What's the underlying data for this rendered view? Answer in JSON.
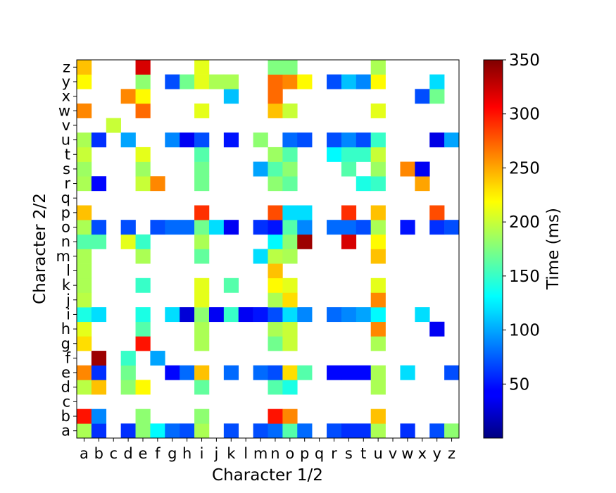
{
  "chart_data": {
    "type": "heatmap",
    "title": "",
    "xlabel": "Character 1/2",
    "ylabel": "Character 2/2",
    "x_categories": [
      "a",
      "b",
      "c",
      "d",
      "e",
      "f",
      "g",
      "h",
      "i",
      "j",
      "k",
      "l",
      "m",
      "n",
      "o",
      "p",
      "q",
      "r",
      "s",
      "t",
      "u",
      "v",
      "w",
      "x",
      "y",
      "z"
    ],
    "y_categories": [
      "a",
      "b",
      "c",
      "d",
      "e",
      "f",
      "g",
      "h",
      "i",
      "j",
      "k",
      "l",
      "m",
      "n",
      "o",
      "p",
      "q",
      "r",
      "s",
      "t",
      "u",
      "v",
      "w",
      "x",
      "y",
      "z"
    ],
    "colorbar": {
      "label": "Time (ms)",
      "range": [
        0,
        350
      ],
      "ticks": [
        50,
        100,
        150,
        200,
        250,
        300,
        350
      ],
      "colormap": "jet"
    },
    "cells": [
      {
        "x": "a",
        "y": "a",
        "v": 190
      },
      {
        "x": "b",
        "y": "a",
        "v": 60
      },
      {
        "x": "d",
        "y": "a",
        "v": 60
      },
      {
        "x": "e",
        "y": "a",
        "v": 180
      },
      {
        "x": "f",
        "y": "a",
        "v": 130
      },
      {
        "x": "g",
        "y": "a",
        "v": 80
      },
      {
        "x": "h",
        "y": "a",
        "v": 70
      },
      {
        "x": "i",
        "y": "a",
        "v": 190
      },
      {
        "x": "k",
        "y": "a",
        "v": 70
      },
      {
        "x": "m",
        "y": "a",
        "v": 70
      },
      {
        "x": "n",
        "y": "a",
        "v": 80
      },
      {
        "x": "o",
        "y": "a",
        "v": 160
      },
      {
        "x": "p",
        "y": "a",
        "v": 80
      },
      {
        "x": "r",
        "y": "a",
        "v": 70
      },
      {
        "x": "s",
        "y": "a",
        "v": 60
      },
      {
        "x": "t",
        "y": "a",
        "v": 60
      },
      {
        "x": "u",
        "y": "a",
        "v": 190
      },
      {
        "x": "w",
        "y": "a",
        "v": 60
      },
      {
        "x": "y",
        "y": "a",
        "v": 70
      },
      {
        "x": "z",
        "y": "a",
        "v": 180
      },
      {
        "x": "a",
        "y": "b",
        "v": 300
      },
      {
        "x": "b",
        "y": "b",
        "v": 90
      },
      {
        "x": "e",
        "y": "b",
        "v": 180
      },
      {
        "x": "i",
        "y": "b",
        "v": 180
      },
      {
        "x": "n",
        "y": "b",
        "v": 300
      },
      {
        "x": "o",
        "y": "b",
        "v": 260
      },
      {
        "x": "u",
        "y": "b",
        "v": 240
      },
      {
        "x": "a",
        "y": "d",
        "v": 195
      },
      {
        "x": "b",
        "y": "d",
        "v": 240
      },
      {
        "x": "d",
        "y": "d",
        "v": 180
      },
      {
        "x": "e",
        "y": "d",
        "v": 220
      },
      {
        "x": "i",
        "y": "d",
        "v": 165
      },
      {
        "x": "n",
        "y": "d",
        "v": 160
      },
      {
        "x": "o",
        "y": "d",
        "v": 140
      },
      {
        "x": "u",
        "y": "d",
        "v": 190
      },
      {
        "x": "a",
        "y": "e",
        "v": 260
      },
      {
        "x": "b",
        "y": "e",
        "v": 60
      },
      {
        "x": "d",
        "y": "e",
        "v": 170
      },
      {
        "x": "g",
        "y": "e",
        "v": 45
      },
      {
        "x": "h",
        "y": "e",
        "v": 80
      },
      {
        "x": "i",
        "y": "e",
        "v": 240
      },
      {
        "x": "k",
        "y": "e",
        "v": 80
      },
      {
        "x": "m",
        "y": "e",
        "v": 80
      },
      {
        "x": "n",
        "y": "e",
        "v": 70
      },
      {
        "x": "o",
        "y": "e",
        "v": 230
      },
      {
        "x": "p",
        "y": "e",
        "v": 160
      },
      {
        "x": "r",
        "y": "e",
        "v": 45
      },
      {
        "x": "s",
        "y": "e",
        "v": 45
      },
      {
        "x": "t",
        "y": "e",
        "v": 45
      },
      {
        "x": "u",
        "y": "e",
        "v": 190
      },
      {
        "x": "w",
        "y": "e",
        "v": 120
      },
      {
        "x": "z",
        "y": "e",
        "v": 70
      },
      {
        "x": "b",
        "y": "f",
        "v": 340
      },
      {
        "x": "d",
        "y": "f",
        "v": 150
      },
      {
        "x": "f",
        "y": "f",
        "v": 100
      },
      {
        "x": "a",
        "y": "g",
        "v": 230
      },
      {
        "x": "e",
        "y": "g",
        "v": 300
      },
      {
        "x": "i",
        "y": "g",
        "v": 190
      },
      {
        "x": "n",
        "y": "g",
        "v": 170
      },
      {
        "x": "o",
        "y": "g",
        "v": 200
      },
      {
        "x": "u",
        "y": "g",
        "v": 190
      },
      {
        "x": "a",
        "y": "h",
        "v": 210
      },
      {
        "x": "e",
        "y": "h",
        "v": 160
      },
      {
        "x": "i",
        "y": "h",
        "v": 190
      },
      {
        "x": "n",
        "y": "h",
        "v": 190
      },
      {
        "x": "o",
        "y": "h",
        "v": 200
      },
      {
        "x": "u",
        "y": "h",
        "v": 260
      },
      {
        "x": "y",
        "y": "h",
        "v": 40
      },
      {
        "x": "a",
        "y": "i",
        "v": 140
      },
      {
        "x": "b",
        "y": "i",
        "v": 120
      },
      {
        "x": "e",
        "y": "i",
        "v": 140
      },
      {
        "x": "g",
        "y": "i",
        "v": 120
      },
      {
        "x": "h",
        "y": "i",
        "v": 30
      },
      {
        "x": "i",
        "y": "i",
        "v": 180
      },
      {
        "x": "j",
        "y": "i",
        "v": 40
      },
      {
        "x": "k",
        "y": "i",
        "v": 150
      },
      {
        "x": "l",
        "y": "i",
        "v": 40
      },
      {
        "x": "m",
        "y": "i",
        "v": 50
      },
      {
        "x": "n",
        "y": "i",
        "v": 70
      },
      {
        "x": "o",
        "y": "i",
        "v": 120
      },
      {
        "x": "p",
        "y": "i",
        "v": 90
      },
      {
        "x": "r",
        "y": "i",
        "v": 80
      },
      {
        "x": "s",
        "y": "i",
        "v": 90
      },
      {
        "x": "t",
        "y": "i",
        "v": 100
      },
      {
        "x": "u",
        "y": "i",
        "v": 130
      },
      {
        "x": "x",
        "y": "i",
        "v": 120
      },
      {
        "x": "a",
        "y": "j",
        "v": 195
      },
      {
        "x": "i",
        "y": "j",
        "v": 210
      },
      {
        "x": "n",
        "y": "j",
        "v": 190
      },
      {
        "x": "o",
        "y": "j",
        "v": 230
      },
      {
        "x": "u",
        "y": "j",
        "v": 260
      },
      {
        "x": "a",
        "y": "k",
        "v": 190
      },
      {
        "x": "e",
        "y": "k",
        "v": 150
      },
      {
        "x": "i",
        "y": "k",
        "v": 210
      },
      {
        "x": "k",
        "y": "k",
        "v": 160
      },
      {
        "x": "n",
        "y": "k",
        "v": 220
      },
      {
        "x": "o",
        "y": "k",
        "v": 210
      },
      {
        "x": "u",
        "y": "k",
        "v": 210
      },
      {
        "x": "a",
        "y": "l",
        "v": 190
      },
      {
        "x": "n",
        "y": "l",
        "v": 240
      },
      {
        "x": "a",
        "y": "m",
        "v": 190
      },
      {
        "x": "e",
        "y": "m",
        "v": 190
      },
      {
        "x": "i",
        "y": "m",
        "v": 165
      },
      {
        "x": "m",
        "y": "m",
        "v": 120
      },
      {
        "x": "n",
        "y": "m",
        "v": 195
      },
      {
        "x": "o",
        "y": "m",
        "v": 190
      },
      {
        "x": "u",
        "y": "m",
        "v": 240
      },
      {
        "x": "a",
        "y": "n",
        "v": 160
      },
      {
        "x": "b",
        "y": "n",
        "v": 160
      },
      {
        "x": "d",
        "y": "n",
        "v": 210
      },
      {
        "x": "e",
        "y": "n",
        "v": 150
      },
      {
        "x": "i",
        "y": "n",
        "v": 190
      },
      {
        "x": "n",
        "y": "n",
        "v": 130
      },
      {
        "x": "o",
        "y": "n",
        "v": 180
      },
      {
        "x": "p",
        "y": "n",
        "v": 340
      },
      {
        "x": "s",
        "y": "n",
        "v": 320
      },
      {
        "x": "u",
        "y": "n",
        "v": 220
      },
      {
        "x": "a",
        "y": "o",
        "v": 190
      },
      {
        "x": "b",
        "y": "o",
        "v": 70
      },
      {
        "x": "d",
        "y": "o",
        "v": 70
      },
      {
        "x": "f",
        "y": "o",
        "v": 70
      },
      {
        "x": "g",
        "y": "o",
        "v": 80
      },
      {
        "x": "h",
        "y": "o",
        "v": 80
      },
      {
        "x": "i",
        "y": "o",
        "v": 170
      },
      {
        "x": "j",
        "y": "o",
        "v": 120
      },
      {
        "x": "k",
        "y": "o",
        "v": 40
      },
      {
        "x": "m",
        "y": "o",
        "v": 60
      },
      {
        "x": "n",
        "y": "o",
        "v": 50
      },
      {
        "x": "o",
        "y": "o",
        "v": 160
      },
      {
        "x": "p",
        "y": "o",
        "v": 90
      },
      {
        "x": "r",
        "y": "o",
        "v": 80
      },
      {
        "x": "s",
        "y": "o",
        "v": 80
      },
      {
        "x": "t",
        "y": "o",
        "v": 70
      },
      {
        "x": "u",
        "y": "o",
        "v": 190
      },
      {
        "x": "w",
        "y": "o",
        "v": 50
      },
      {
        "x": "y",
        "y": "o",
        "v": 60
      },
      {
        "x": "z",
        "y": "o",
        "v": 70
      },
      {
        "x": "a",
        "y": "p",
        "v": 240
      },
      {
        "x": "i",
        "y": "p",
        "v": 290
      },
      {
        "x": "n",
        "y": "p",
        "v": 280
      },
      {
        "x": "o",
        "y": "p",
        "v": 120
      },
      {
        "x": "p",
        "y": "p",
        "v": 120
      },
      {
        "x": "s",
        "y": "p",
        "v": 290
      },
      {
        "x": "u",
        "y": "p",
        "v": 240
      },
      {
        "x": "y",
        "y": "p",
        "v": 280
      },
      {
        "x": "a",
        "y": "r",
        "v": 190
      },
      {
        "x": "b",
        "y": "r",
        "v": 45
      },
      {
        "x": "e",
        "y": "r",
        "v": 200
      },
      {
        "x": "f",
        "y": "r",
        "v": 260
      },
      {
        "x": "i",
        "y": "r",
        "v": 170
      },
      {
        "x": "n",
        "y": "r",
        "v": 180
      },
      {
        "x": "o",
        "y": "r",
        "v": 165
      },
      {
        "x": "t",
        "y": "r",
        "v": 140
      },
      {
        "x": "u",
        "y": "r",
        "v": 150
      },
      {
        "x": "x",
        "y": "r",
        "v": 250
      },
      {
        "x": "a",
        "y": "s",
        "v": 185
      },
      {
        "x": "e",
        "y": "s",
        "v": 185
      },
      {
        "x": "i",
        "y": "s",
        "v": 170
      },
      {
        "x": "m",
        "y": "s",
        "v": 100
      },
      {
        "x": "n",
        "y": "s",
        "v": 160
      },
      {
        "x": "o",
        "y": "s",
        "v": 180
      },
      {
        "x": "s",
        "y": "s",
        "v": 160
      },
      {
        "x": "u",
        "y": "s",
        "v": 185
      },
      {
        "x": "w",
        "y": "s",
        "v": 260
      },
      {
        "x": "x",
        "y": "s",
        "v": 40
      },
      {
        "x": "a",
        "y": "t",
        "v": 200
      },
      {
        "x": "e",
        "y": "t",
        "v": 210
      },
      {
        "x": "i",
        "y": "t",
        "v": 160
      },
      {
        "x": "n",
        "y": "t",
        "v": 185
      },
      {
        "x": "o",
        "y": "t",
        "v": 160
      },
      {
        "x": "r",
        "y": "t",
        "v": 130
      },
      {
        "x": "s",
        "y": "t",
        "v": 150
      },
      {
        "x": "t",
        "y": "t",
        "v": 150
      },
      {
        "x": "u",
        "y": "t",
        "v": 200
      },
      {
        "x": "a",
        "y": "u",
        "v": 190
      },
      {
        "x": "b",
        "y": "u",
        "v": 60
      },
      {
        "x": "d",
        "y": "u",
        "v": 100
      },
      {
        "x": "g",
        "y": "u",
        "v": 90
      },
      {
        "x": "h",
        "y": "u",
        "v": 40
      },
      {
        "x": "i",
        "y": "u",
        "v": 70
      },
      {
        "x": "k",
        "y": "u",
        "v": 50
      },
      {
        "x": "m",
        "y": "u",
        "v": 180
      },
      {
        "x": "o",
        "y": "u",
        "v": 80
      },
      {
        "x": "p",
        "y": "u",
        "v": 70
      },
      {
        "x": "r",
        "y": "u",
        "v": 70
      },
      {
        "x": "s",
        "y": "u",
        "v": 90
      },
      {
        "x": "t",
        "y": "u",
        "v": 70
      },
      {
        "x": "u",
        "y": "u",
        "v": 150
      },
      {
        "x": "y",
        "y": "u",
        "v": 35
      },
      {
        "x": "z",
        "y": "u",
        "v": 100
      },
      {
        "x": "c",
        "y": "v",
        "v": 200
      },
      {
        "x": "a",
        "y": "w",
        "v": 260
      },
      {
        "x": "e",
        "y": "w",
        "v": 270
      },
      {
        "x": "i",
        "y": "w",
        "v": 210
      },
      {
        "x": "n",
        "y": "w",
        "v": 240
      },
      {
        "x": "o",
        "y": "w",
        "v": 200
      },
      {
        "x": "u",
        "y": "w",
        "v": 210
      },
      {
        "x": "d",
        "y": "x",
        "v": 260
      },
      {
        "x": "e",
        "y": "x",
        "v": 220
      },
      {
        "x": "k",
        "y": "x",
        "v": 110
      },
      {
        "x": "n",
        "y": "x",
        "v": 270
      },
      {
        "x": "x",
        "y": "x",
        "v": 70
      },
      {
        "x": "y",
        "y": "x",
        "v": 170
      },
      {
        "x": "a",
        "y": "y",
        "v": 220
      },
      {
        "x": "e",
        "y": "y",
        "v": 180
      },
      {
        "x": "g",
        "y": "y",
        "v": 70
      },
      {
        "x": "h",
        "y": "y",
        "v": 170
      },
      {
        "x": "i",
        "y": "y",
        "v": 210
      },
      {
        "x": "j",
        "y": "y",
        "v": 190
      },
      {
        "x": "k",
        "y": "y",
        "v": 190
      },
      {
        "x": "n",
        "y": "y",
        "v": 270
      },
      {
        "x": "o",
        "y": "y",
        "v": 260
      },
      {
        "x": "p",
        "y": "y",
        "v": 220
      },
      {
        "x": "r",
        "y": "y",
        "v": 70
      },
      {
        "x": "s",
        "y": "y",
        "v": 110
      },
      {
        "x": "t",
        "y": "y",
        "v": 90
      },
      {
        "x": "u",
        "y": "y",
        "v": 220
      },
      {
        "x": "y",
        "y": "y",
        "v": 120
      },
      {
        "x": "a",
        "y": "z",
        "v": 240
      },
      {
        "x": "e",
        "y": "z",
        "v": 320
      },
      {
        "x": "i",
        "y": "z",
        "v": 210
      },
      {
        "x": "n",
        "y": "z",
        "v": 175
      },
      {
        "x": "o",
        "y": "z",
        "v": 175
      },
      {
        "x": "u",
        "y": "z",
        "v": 190
      }
    ]
  }
}
